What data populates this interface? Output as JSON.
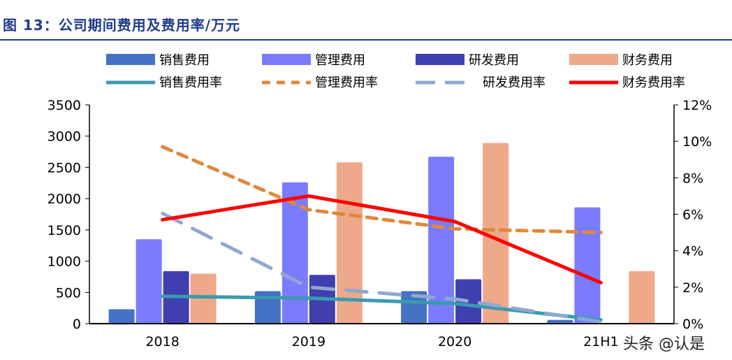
{
  "title": "图 13：公司期间费用及费用率/万元",
  "watermark": "头条 @认是",
  "chart_data": {
    "type": "bar+line",
    "categories": [
      "2018",
      "2019",
      "2020",
      "21H1"
    ],
    "left_axis": {
      "ylim": [
        0,
        3500
      ],
      "ticks": [
        0,
        500,
        1000,
        1500,
        2000,
        2500,
        3000,
        3500
      ]
    },
    "right_axis": {
      "ylim": [
        0,
        12
      ],
      "ticks": [
        "0%",
        "2%",
        "4%",
        "6%",
        "8%",
        "10%",
        "12%"
      ]
    },
    "bars": [
      {
        "name": "销售费用",
        "color": "#4472c4",
        "values": [
          230,
          520,
          520,
          60
        ]
      },
      {
        "name": "管理费用",
        "color": "#7b7bff",
        "values": [
          1350,
          2260,
          2670,
          1860
        ]
      },
      {
        "name": "研发费用",
        "color": "#3f3fb0",
        "values": [
          840,
          780,
          710,
          0
        ]
      },
      {
        "name": "财务费用",
        "color": "#eda98a",
        "values": [
          800,
          2580,
          2890,
          840
        ]
      }
    ],
    "lines": [
      {
        "name": "销售费用率",
        "color": "#3a9aad",
        "dash": "solid",
        "values": [
          1.5,
          1.4,
          1.1,
          0.2
        ]
      },
      {
        "name": "管理费用率",
        "color": "#e0883a",
        "dash": "dash",
        "values": [
          9.7,
          6.25,
          5.2,
          5.0
        ]
      },
      {
        "name": "研发费用率",
        "color": "#8fa8d0",
        "dash": "longdash",
        "values": [
          6.05,
          2.0,
          1.35,
          0.1
        ]
      },
      {
        "name": "财务费用率",
        "color": "#ff0000",
        "dash": "solid",
        "values": [
          5.7,
          7.0,
          5.6,
          2.25
        ]
      }
    ],
    "legend": "top"
  }
}
